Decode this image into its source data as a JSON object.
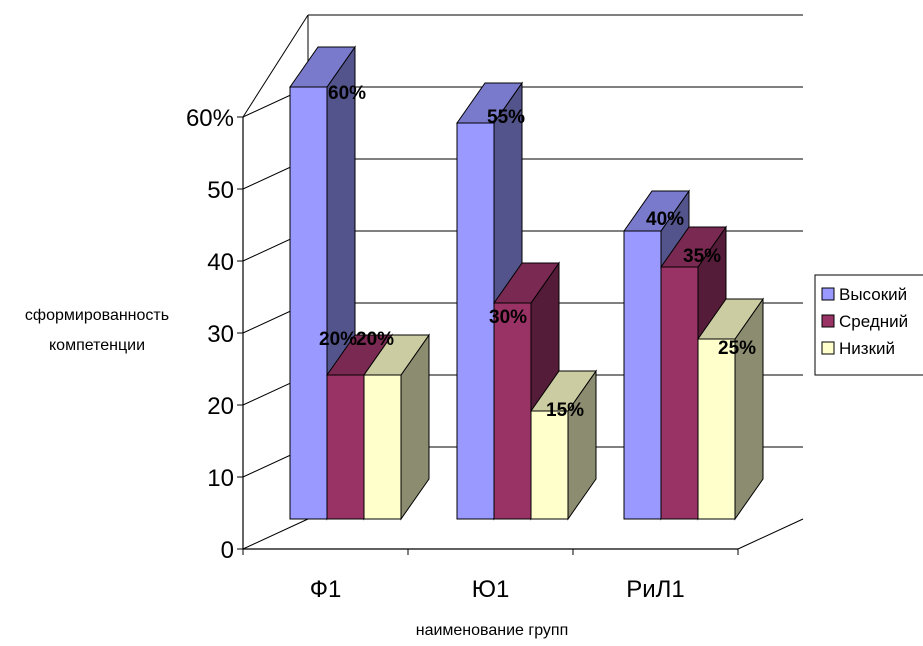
{
  "chart_data": {
    "type": "bar",
    "categories": [
      "Ф1",
      "Ю1",
      "РиЛ1"
    ],
    "series": [
      {
        "name": "Высокий",
        "values": [
          60,
          55,
          40
        ],
        "labels": [
          "60%",
          "55%",
          "40%"
        ],
        "color": "#9999ff"
      },
      {
        "name": "Средний",
        "values": [
          20,
          30,
          35
        ],
        "labels": [
          "20%",
          "30%",
          "35%"
        ],
        "color": "#993366"
      },
      {
        "name": "Низкий",
        "values": [
          20,
          15,
          25
        ],
        "labels": [
          "20%",
          "15%",
          "25%"
        ],
        "color": "#ffffcc"
      }
    ],
    "yticks": [
      "0",
      "10",
      "20",
      "30",
      "40",
      "50",
      "60%"
    ],
    "ylim": [
      0,
      60
    ],
    "xlabel": "наименование групп",
    "ylabel": "сформированность компетенции",
    "ylabel_lines": [
      "сформированность",
      "компетенции"
    ],
    "legend_position": "right",
    "grid": true,
    "three_d": true
  }
}
